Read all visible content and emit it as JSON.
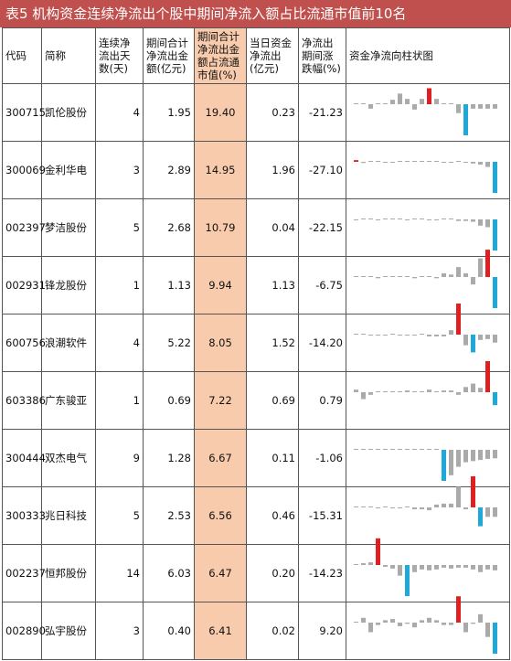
{
  "title": "表5 机构资金连续净流出个股中期间净流入额占比流通市值前10名",
  "headers": [
    "代码",
    "简称",
    "连续净流出天数(天)",
    "期间合计净流出金额(亿元)",
    "期间合计净流出金额占流通市值(%)",
    "当日资金净流出(亿元)",
    "净流出期间涨跌幅(%)",
    "资金净流向柱状图"
  ],
  "colors": {
    "title_bg": "#c0504d",
    "highlight": "#f8cbad",
    "up_bar": "#e02020",
    "down_bar": "#1fa8d8",
    "neutral_bar": "#aaaaaa"
  },
  "chart_data": {
    "type": "table",
    "columns": [
      "代码",
      "简称",
      "连续净流出天数(天)",
      "期间合计净流出金额(亿元)",
      "期间合计净流出金额占流通市值(%)",
      "当日资金净流出(亿元)",
      "净流出期间涨跌幅(%)"
    ],
    "rows": [
      {
        "code": "300715",
        "name": "凯伦股份",
        "days": "4",
        "outflow": "1.95",
        "pct": "19.40",
        "today": "0.23",
        "chg": "-21.23",
        "bars": [
          0,
          0,
          -0.5,
          0,
          0,
          0.5,
          1.2,
          0.6,
          -0.6,
          0.6,
          1.8,
          0.6,
          0,
          0,
          -1,
          -3.5,
          -0.5,
          -0.5,
          -0.5,
          -0.5
        ]
      },
      {
        "code": "300069",
        "name": "金利华电",
        "days": "3",
        "outflow": "2.89",
        "pct": "14.95",
        "today": "1.96",
        "chg": "-27.10",
        "bars": [
          0.3,
          -0.2,
          0,
          0,
          -0.1,
          -0.1,
          0,
          0,
          0,
          0,
          0,
          0,
          -0.1,
          -0.1,
          0,
          -0.1,
          -0.3,
          -0.5,
          -0.9,
          -5.5
        ]
      },
      {
        "code": "002397",
        "name": "梦洁股份",
        "days": "5",
        "outflow": "2.68",
        "pct": "10.79",
        "today": "0.04",
        "chg": "-22.15",
        "bars": [
          -0.1,
          0,
          0,
          -0.1,
          0,
          0,
          0,
          -0.1,
          0,
          0,
          -0.1,
          -0.1,
          0,
          0,
          -0.2,
          -0.2,
          -0.3,
          -0.8,
          -1.0,
          -4.0
        ]
      },
      {
        "code": "002931",
        "name": "锋龙股份",
        "days": "1",
        "outflow": "1.13",
        "pct": "9.94",
        "today": "1.13",
        "chg": "-6.75",
        "bars": [
          0,
          0,
          0,
          -0.1,
          0,
          0,
          0,
          0,
          -0.1,
          0,
          0,
          -0.1,
          0.3,
          0.2,
          0.8,
          0.3,
          -0.6,
          1.5,
          2.2,
          -2.5
        ]
      },
      {
        "code": "600756",
        "name": "浪潮软件",
        "days": "4",
        "outflow": "5.22",
        "pct": "8.05",
        "today": "1.52",
        "chg": "-14.20",
        "bars": [
          0,
          0,
          -0.1,
          -0.1,
          -0.1,
          0,
          -0.1,
          -0.1,
          -0.1,
          0,
          -0.2,
          -0.2,
          -0.2,
          0.5,
          3.5,
          -1.2,
          -2.0,
          -0.6,
          -0.5,
          -0.9
        ]
      },
      {
        "code": "603386",
        "name": "广东骏亚",
        "days": "1",
        "outflow": "0.69",
        "pct": "7.22",
        "today": "0.69",
        "chg": "0.79",
        "bars": [
          0.3,
          -0.8,
          -0.3,
          0,
          0,
          0,
          0,
          0.2,
          0.1,
          0,
          0.3,
          0,
          0.2,
          0.2,
          -0.3,
          0.6,
          1.0,
          0.5,
          3.6,
          -1.5
        ]
      },
      {
        "code": "300444",
        "name": "双杰电气",
        "days": "9",
        "outflow": "1.28",
        "pct": "6.67",
        "today": "0.11",
        "chg": "-1.06",
        "bars": [
          0,
          0,
          0,
          0,
          0,
          0,
          0,
          0,
          0,
          0,
          0,
          0,
          -5.5,
          -4.5,
          -3.0,
          -2.2,
          -2.0,
          -1.8,
          -1.6,
          -1.5
        ]
      },
      {
        "code": "300333",
        "name": "兆日科技",
        "days": "5",
        "outflow": "2.53",
        "pct": "6.56",
        "today": "0.46",
        "chg": "-15.31",
        "bars": [
          0,
          0,
          0,
          -0.1,
          0,
          -0.1,
          -0.1,
          0,
          -0.2,
          -0.2,
          -0.3,
          0.3,
          0.4,
          0.4,
          2.2,
          -0.2,
          3.3,
          -2.0,
          -1.0,
          -1.0
        ]
      },
      {
        "code": "002237",
        "name": "恒邦股份",
        "days": "14",
        "outflow": "6.03",
        "pct": "6.47",
        "today": "0.20",
        "chg": "-14.23",
        "bars": [
          0,
          0.2,
          0.3,
          3.0,
          -0.2,
          -0.4,
          -1.2,
          -3.5,
          -0.8,
          -0.5,
          -0.6,
          -0.5,
          -0.3,
          -0.4,
          -0.3,
          -0.3,
          -0.5,
          -0.8,
          -0.5,
          -0.6
        ]
      },
      {
        "code": "002890",
        "name": "弘宇股份",
        "days": "3",
        "outflow": "0.40",
        "pct": "6.41",
        "today": "0.02",
        "chg": "9.20",
        "bars": [
          0,
          0.4,
          -0.8,
          -0.2,
          0.2,
          0.3,
          -0.3,
          -0.1,
          -0.4,
          0.2,
          0.4,
          0.2,
          -0.2,
          -0.2,
          2.2,
          -0.8,
          -0.1,
          0.7,
          -1.2,
          -2.6
        ]
      }
    ]
  }
}
